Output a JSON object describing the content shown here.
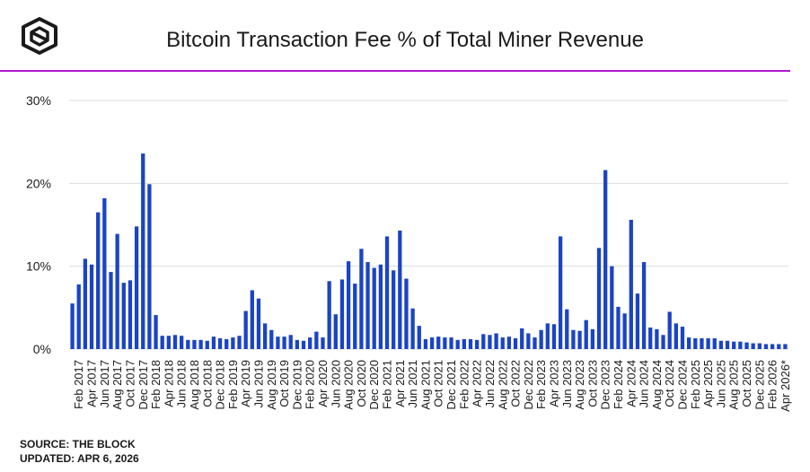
{
  "header": {
    "title": "Bitcoin Transaction Fee % of Total Miner Revenue",
    "logo_icon": "cube-logo-icon"
  },
  "footer": {
    "source": "SOURCE: THE BLOCK",
    "updated": "UPDATED: APR 6, 2026"
  },
  "colors": {
    "bar": "#1b44c4",
    "accent_rule": "#b21ad0",
    "grid": "#dddddd",
    "text": "#1a1a1a"
  },
  "chart_data": {
    "type": "bar",
    "title": "Bitcoin Transaction Fee % of Total Miner Revenue",
    "xlabel": "",
    "ylabel": "",
    "ylim": [
      0,
      30
    ],
    "yticks": [
      "0%",
      "10%",
      "20%",
      "30%"
    ],
    "grid": true,
    "legend": "none",
    "categories": [
      "Jan 2017",
      "Feb 2017",
      "Mar 2017",
      "Apr 2017",
      "May 2017",
      "Jun 2017",
      "Jul 2017",
      "Aug 2017",
      "Sep 2017",
      "Oct 2017",
      "Nov 2017",
      "Dec 2017",
      "Jan 2018",
      "Feb 2018",
      "Mar 2018",
      "Apr 2018",
      "May 2018",
      "Jun 2018",
      "Jul 2018",
      "Aug 2018",
      "Sep 2018",
      "Oct 2018",
      "Nov 2018",
      "Dec 2018",
      "Jan 2019",
      "Feb 2019",
      "Mar 2019",
      "Apr 2019",
      "May 2019",
      "Jun 2019",
      "Jul 2019",
      "Aug 2019",
      "Sep 2019",
      "Oct 2019",
      "Nov 2019",
      "Dec 2019",
      "Jan 2020",
      "Feb 2020",
      "Mar 2020",
      "Apr 2020",
      "May 2020",
      "Jun 2020",
      "Jul 2020",
      "Aug 2020",
      "Sep 2020",
      "Oct 2020",
      "Nov 2020",
      "Dec 2020",
      "Jan 2021",
      "Feb 2021",
      "Mar 2021",
      "Apr 2021",
      "May 2021",
      "Jun 2021",
      "Jul 2021",
      "Aug 2021",
      "Sep 2021",
      "Oct 2021",
      "Nov 2021",
      "Dec 2021",
      "Jan 2022",
      "Feb 2022",
      "Mar 2022",
      "Apr 2022",
      "May 2022",
      "Jun 2022",
      "Jul 2022",
      "Aug 2022",
      "Sep 2022",
      "Oct 2022",
      "Nov 2022",
      "Dec 2022",
      "Jan 2023",
      "Feb 2023",
      "Mar 2023",
      "Apr 2023",
      "May 2023",
      "Jun 2023",
      "Jul 2023",
      "Aug 2023",
      "Sep 2023",
      "Oct 2023",
      "Nov 2023",
      "Dec 2023",
      "Jan 2024",
      "Feb 2024",
      "Mar 2024",
      "Apr 2024",
      "May 2024",
      "Jun 2024",
      "Jul 2024",
      "Aug 2024",
      "Sep 2024",
      "Oct 2024",
      "Nov 2024",
      "Dec 2024",
      "Jan 2025",
      "Feb 2025",
      "Mar 2025",
      "Apr 2025",
      "May 2025",
      "Jun 2025",
      "Jul 2025",
      "Aug 2025",
      "Sep 2025",
      "Oct 2025",
      "Nov 2025",
      "Dec 2025",
      "Jan 2026",
      "Feb 2026",
      "Mar 2026",
      "Apr 2026*"
    ],
    "tick_labels": [
      "Feb 2017",
      "Apr 2017",
      "Jun 2017",
      "Aug 2017",
      "Oct 2017",
      "Dec 2017",
      "Feb 2018",
      "Apr 2018",
      "Jun 2018",
      "Aug 2018",
      "Oct 2018",
      "Dec 2018",
      "Feb 2019",
      "Apr 2019",
      "Jun 2019",
      "Aug 2019",
      "Oct 2019",
      "Dec 2019",
      "Feb 2020",
      "Apr 2020",
      "Jun 2020",
      "Aug 2020",
      "Oct 2020",
      "Dec 2020",
      "Feb 2021",
      "Apr 2021",
      "Jun 2021",
      "Aug 2021",
      "Oct 2021",
      "Dec 2021",
      "Feb 2022",
      "Apr 2022",
      "Jun 2022",
      "Aug 2022",
      "Oct 2022",
      "Dec 2022",
      "Feb 2023",
      "Apr 2023",
      "Jun 2023",
      "Aug 2023",
      "Oct 2023",
      "Dec 2023",
      "Feb 2024",
      "Apr 2024",
      "Jun 2024",
      "Aug 2024",
      "Oct 2024",
      "Dec 2024",
      "Feb 2025",
      "Apr 2025",
      "Jun 2025",
      "Aug 2025",
      "Oct 2025",
      "Dec 2025",
      "Feb 2026",
      "Apr 2026*"
    ],
    "values": [
      5.5,
      7.8,
      10.9,
      10.2,
      16.5,
      18.2,
      9.3,
      13.9,
      8.0,
      8.3,
      14.8,
      23.6,
      19.9,
      4.1,
      1.6,
      1.6,
      1.7,
      1.6,
      1.1,
      1.1,
      1.1,
      1.0,
      1.5,
      1.3,
      1.2,
      1.4,
      1.6,
      4.6,
      7.1,
      6.1,
      3.1,
      2.3,
      1.5,
      1.5,
      1.7,
      1.1,
      1.0,
      1.4,
      2.1,
      1.4,
      8.2,
      4.2,
      8.4,
      10.6,
      7.9,
      12.1,
      10.5,
      9.8,
      10.2,
      13.6,
      9.5,
      14.3,
      8.5,
      4.9,
      2.8,
      1.2,
      1.4,
      1.5,
      1.4,
      1.4,
      1.1,
      1.2,
      1.2,
      1.1,
      1.8,
      1.7,
      1.9,
      1.4,
      1.5,
      1.3,
      2.5,
      1.9,
      1.4,
      2.3,
      3.1,
      3.0,
      13.6,
      4.8,
      2.3,
      2.2,
      3.5,
      2.4,
      12.2,
      21.6,
      10.0,
      5.1,
      4.3,
      15.6,
      6.7,
      10.5,
      2.6,
      2.4,
      1.7,
      4.5,
      3.1,
      2.7,
      1.4,
      1.3,
      1.3,
      1.3,
      1.3,
      1.0,
      1.0,
      0.9,
      0.9,
      0.8,
      0.7,
      0.7,
      0.6,
      0.6,
      0.6,
      0.6
    ]
  }
}
